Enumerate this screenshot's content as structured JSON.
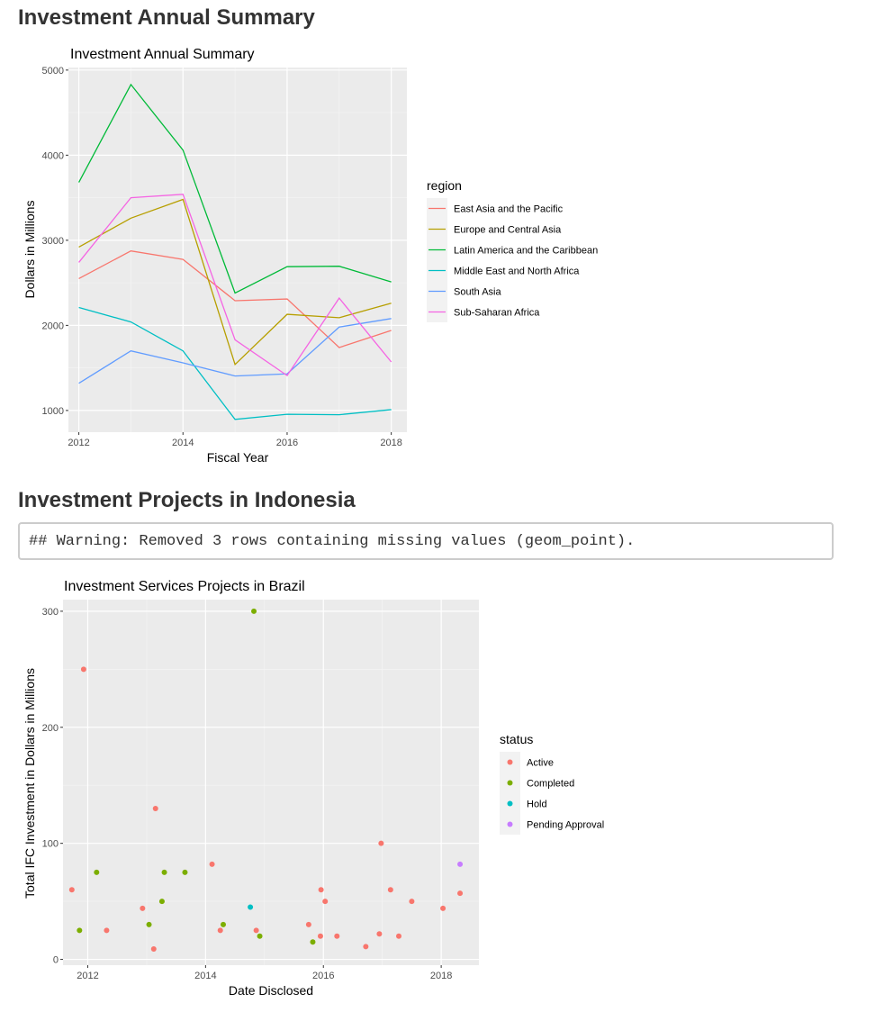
{
  "headings": {
    "summary": "Investment Annual Summary",
    "indonesia": "Investment Projects in Indonesia"
  },
  "warning": "## Warning: Removed 3 rows containing missing values (geom_point).",
  "chart_data": [
    {
      "type": "line",
      "title": "Investment Annual Summary",
      "xlabel": "Fiscal Year",
      "ylabel": "Dollars in Millions",
      "xlim": [
        2011.8,
        2018.3
      ],
      "ylim": [
        745,
        5030
      ],
      "x_ticks": [
        2012,
        2014,
        2016,
        2018
      ],
      "y_ticks": [
        1000,
        2000,
        3000,
        4000,
        5000
      ],
      "grid": true,
      "legend_title": "region",
      "legend_position": "right",
      "x": [
        2012,
        2013,
        2014,
        2015,
        2016,
        2017,
        2018
      ],
      "series": [
        {
          "name": "East Asia and the Pacific",
          "color": "#F8766D",
          "values": [
            2550,
            2875,
            2775,
            2290,
            2310,
            1740,
            1940
          ]
        },
        {
          "name": "Europe and Central Asia",
          "color": "#B79F00",
          "values": [
            2920,
            3260,
            3480,
            1540,
            2130,
            2090,
            2260
          ]
        },
        {
          "name": "Latin America and the Caribbean",
          "color": "#00BA38",
          "values": [
            3680,
            4830,
            4060,
            2380,
            2690,
            2695,
            2510
          ]
        },
        {
          "name": "Middle East and North Africa",
          "color": "#00BFC4",
          "values": [
            2210,
            2040,
            1700,
            895,
            955,
            950,
            1010
          ]
        },
        {
          "name": "South Asia",
          "color": "#619CFF",
          "values": [
            1320,
            1700,
            1560,
            1405,
            1430,
            1980,
            2080
          ]
        },
        {
          "name": "Sub-Saharan Africa",
          "color": "#F564E3",
          "values": [
            2740,
            3500,
            3540,
            1830,
            1410,
            2320,
            1570
          ]
        }
      ]
    },
    {
      "type": "scatter",
      "title": "Investment Services Projects in Brazil",
      "xlabel": "Date Disclosed",
      "ylabel": "Total IFC Investment in Dollars in Millions",
      "xlim": [
        2011.58,
        2018.64
      ],
      "ylim": [
        -5,
        310
      ],
      "x_ticks": [
        2012,
        2014,
        2016,
        2018
      ],
      "y_ticks": [
        0,
        100,
        200,
        300
      ],
      "grid": true,
      "legend_title": "status",
      "legend_position": "right",
      "series": [
        {
          "name": "Active",
          "color": "#F8766D",
          "points": [
            [
              2011.73,
              60
            ],
            [
              2011.93,
              250
            ],
            [
              2012.32,
              25
            ],
            [
              2012.93,
              44
            ],
            [
              2013.12,
              9
            ],
            [
              2013.15,
              130
            ],
            [
              2014.11,
              82
            ],
            [
              2014.25,
              25
            ],
            [
              2014.86,
              25
            ],
            [
              2015.75,
              30
            ],
            [
              2015.95,
              20
            ],
            [
              2015.96,
              60
            ],
            [
              2016.03,
              50
            ],
            [
              2016.23,
              20
            ],
            [
              2016.72,
              11
            ],
            [
              2016.95,
              22
            ],
            [
              2016.98,
              100
            ],
            [
              2017.14,
              60
            ],
            [
              2017.28,
              20
            ],
            [
              2017.5,
              50
            ],
            [
              2018.03,
              44
            ],
            [
              2018.32,
              57
            ]
          ]
        },
        {
          "name": "Completed",
          "color": "#7CAE00",
          "points": [
            [
              2011.86,
              25
            ],
            [
              2012.15,
              75
            ],
            [
              2013.04,
              30
            ],
            [
              2013.26,
              50
            ],
            [
              2013.3,
              75
            ],
            [
              2013.65,
              75
            ],
            [
              2014.3,
              30
            ],
            [
              2014.82,
              300
            ],
            [
              2014.92,
              20
            ],
            [
              2015.82,
              15
            ]
          ]
        },
        {
          "name": "Hold",
          "color": "#00BFC4",
          "points": [
            [
              2014.76,
              45
            ]
          ]
        },
        {
          "name": "Pending Approval",
          "color": "#C77CFF",
          "points": [
            [
              2018.32,
              82
            ]
          ]
        }
      ]
    }
  ]
}
